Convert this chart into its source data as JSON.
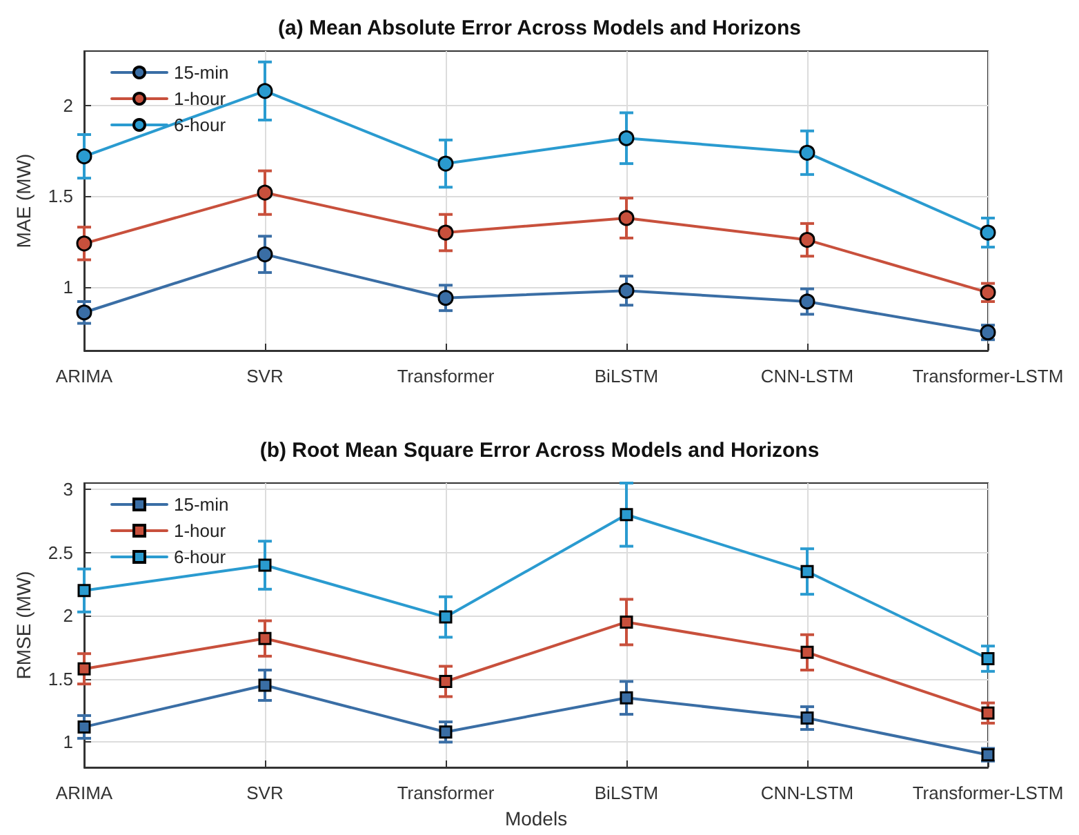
{
  "chart_data": [
    {
      "type": "line",
      "title": "(a) Mean Absolute Error Across Models and Horizons",
      "ylabel": "MAE (MW)",
      "categories": [
        "ARIMA",
        "SVR",
        "Transformer",
        "BiLSTM",
        "CNN-LSTM",
        "Transformer-LSTM"
      ],
      "series": [
        {
          "name": "15-min",
          "color": "#3a6ea5",
          "values": [
            0.86,
            1.18,
            0.94,
            0.98,
            0.92,
            0.75
          ],
          "errors": [
            0.06,
            0.1,
            0.07,
            0.08,
            0.07,
            0.04
          ]
        },
        {
          "name": "1-hour",
          "color": "#c8503c",
          "values": [
            1.24,
            1.52,
            1.3,
            1.38,
            1.26,
            0.97
          ],
          "errors": [
            0.09,
            0.12,
            0.1,
            0.11,
            0.09,
            0.05
          ]
        },
        {
          "name": "6-hour",
          "color": "#2a9bd0",
          "values": [
            1.72,
            2.08,
            1.68,
            1.82,
            1.74,
            1.3
          ],
          "errors": [
            0.12,
            0.16,
            0.13,
            0.14,
            0.12,
            0.08
          ]
        }
      ],
      "ylim": [
        0.65,
        2.3
      ],
      "yticks": [
        1,
        1.5,
        2
      ],
      "grid": true,
      "legend": "top left",
      "marker": "circle",
      "line_style": "solid"
    },
    {
      "type": "line",
      "title": "(b) Root Mean Square Error Across Models and Horizons",
      "xlabel": "Models",
      "ylabel": "RMSE (MW)",
      "categories": [
        "ARIMA",
        "SVR",
        "Transformer",
        "BiLSTM",
        "CNN-LSTM",
        "Transformer-LSTM"
      ],
      "series": [
        {
          "name": "15-min",
          "color": "#3a6ea5",
          "values": [
            1.12,
            1.45,
            1.08,
            1.35,
            1.19,
            0.9
          ],
          "errors": [
            0.09,
            0.12,
            0.08,
            0.13,
            0.09,
            0.05
          ]
        },
        {
          "name": "1-hour",
          "color": "#c8503c",
          "values": [
            1.58,
            1.82,
            1.48,
            1.95,
            1.71,
            1.23
          ],
          "errors": [
            0.12,
            0.14,
            0.12,
            0.18,
            0.14,
            0.08
          ]
        },
        {
          "name": "6-hour",
          "color": "#2a9bd0",
          "values": [
            2.2,
            2.4,
            1.99,
            2.8,
            2.35,
            1.66
          ],
          "errors": [
            0.17,
            0.19,
            0.16,
            0.25,
            0.18,
            0.1
          ]
        }
      ],
      "ylim": [
        0.8,
        3.05
      ],
      "yticks": [
        1,
        1.5,
        2,
        2.5,
        3
      ],
      "grid": true,
      "legend": "top left",
      "marker": "square",
      "line_style": "solid"
    }
  ]
}
